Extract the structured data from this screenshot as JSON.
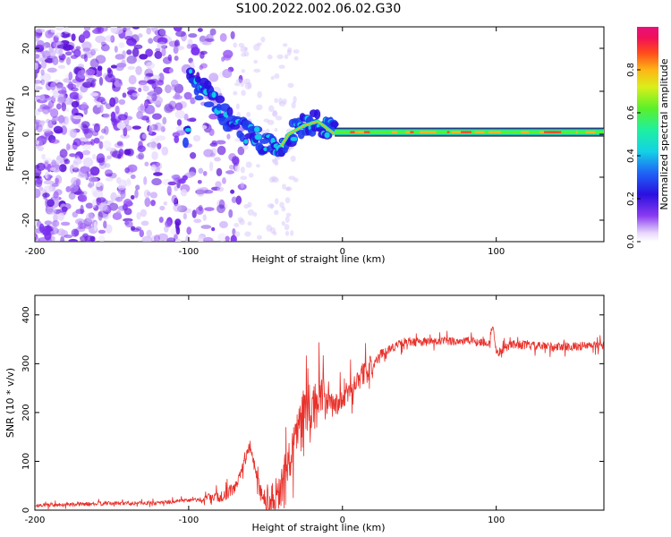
{
  "title": "S100.2022.002.06.02.G30",
  "chart_data": [
    {
      "type": "heatmap",
      "xlabel": "Height of straight line (km)",
      "ylabel": "Frequency (Hz)",
      "xlim": [
        -200,
        170
      ],
      "ylim": [
        -25,
        25
      ],
      "xticks": [
        -200,
        -100,
        0,
        100
      ],
      "yticks": [
        -20,
        -10,
        0,
        10,
        20
      ],
      "colorbar": {
        "label": "Normalized spectral amplitude",
        "range": [
          0,
          1
        ],
        "ticks": [
          "0.0",
          "0.2",
          "0.4",
          "0.6",
          "0.8"
        ]
      },
      "ridge": [
        {
          "x": -100,
          "y": 13
        },
        {
          "x": -90,
          "y": 10
        },
        {
          "x": -80,
          "y": 6
        },
        {
          "x": -70,
          "y": 2
        },
        {
          "x": -60,
          "y": 0
        },
        {
          "x": -50,
          "y": -2
        },
        {
          "x": -42,
          "y": -4
        },
        {
          "x": -35,
          "y": 0
        },
        {
          "x": -25,
          "y": 2
        },
        {
          "x": -16,
          "y": 3
        },
        {
          "x": -5,
          "y": 0
        },
        {
          "x": 0,
          "y": -1
        },
        {
          "x": 5,
          "y": 0.5
        },
        {
          "x": 50,
          "y": 0.5
        },
        {
          "x": 80,
          "y": 0.5
        },
        {
          "x": 90,
          "y": 1
        },
        {
          "x": 100,
          "y": 0.5
        },
        {
          "x": 170,
          "y": 0.5
        }
      ]
    },
    {
      "type": "line",
      "xlabel": "Height of straight line (km)",
      "ylabel": "SNR (10 * v/v)",
      "xlim": [
        -200,
        170
      ],
      "ylim": [
        0,
        440
      ],
      "xticks": [
        -200,
        -100,
        0,
        100
      ],
      "yticks": [
        0,
        100,
        200,
        300,
        400
      ],
      "color": "#e8312b",
      "series": [
        {
          "name": "SNR",
          "x": [
            -200,
            -150,
            -120,
            -100,
            -90,
            -80,
            -70,
            -65,
            -60,
            -55,
            -50,
            -40,
            -35,
            -30,
            -25,
            -20,
            -15,
            -10,
            -5,
            0,
            10,
            20,
            25,
            30,
            40,
            50,
            60,
            80,
            90,
            95,
            98,
            100,
            110,
            130,
            150,
            170
          ],
          "values": [
            10,
            14,
            15,
            20,
            22,
            25,
            45,
            90,
            130,
            60,
            12,
            40,
            100,
            160,
            210,
            200,
            240,
            215,
            215,
            225,
            270,
            295,
            320,
            330,
            343,
            345,
            345,
            347,
            345,
            340,
            380,
            320,
            340,
            335,
            335,
            338
          ]
        }
      ]
    }
  ]
}
